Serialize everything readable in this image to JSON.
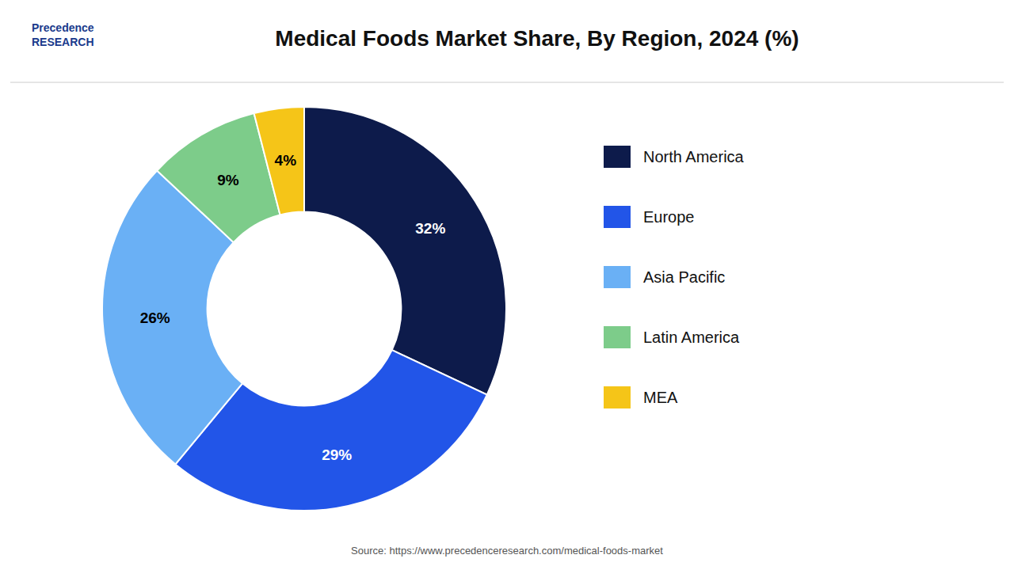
{
  "chart_data": {
    "type": "pie",
    "title": "Medical Foods Market Share, By Region, 2024 (%)",
    "categories": [
      "North America",
      "Europe",
      "Asia Pacific",
      "Latin America",
      "MEA"
    ],
    "values": [
      32,
      29,
      26,
      9,
      4
    ],
    "value_labels": [
      "32%",
      "29%",
      "26%",
      "9%",
      "4%"
    ],
    "colors": [
      "#0d1b4b",
      "#2255e8",
      "#6ab0f5",
      "#7dcc8a",
      "#f5c518"
    ],
    "data_labels": true,
    "legend": "right",
    "annotations": [
      "Precedence\nRESEARCH",
      "Source: https://www.precedenceresearch.com/medical-foods-market"
    ]
  }
}
